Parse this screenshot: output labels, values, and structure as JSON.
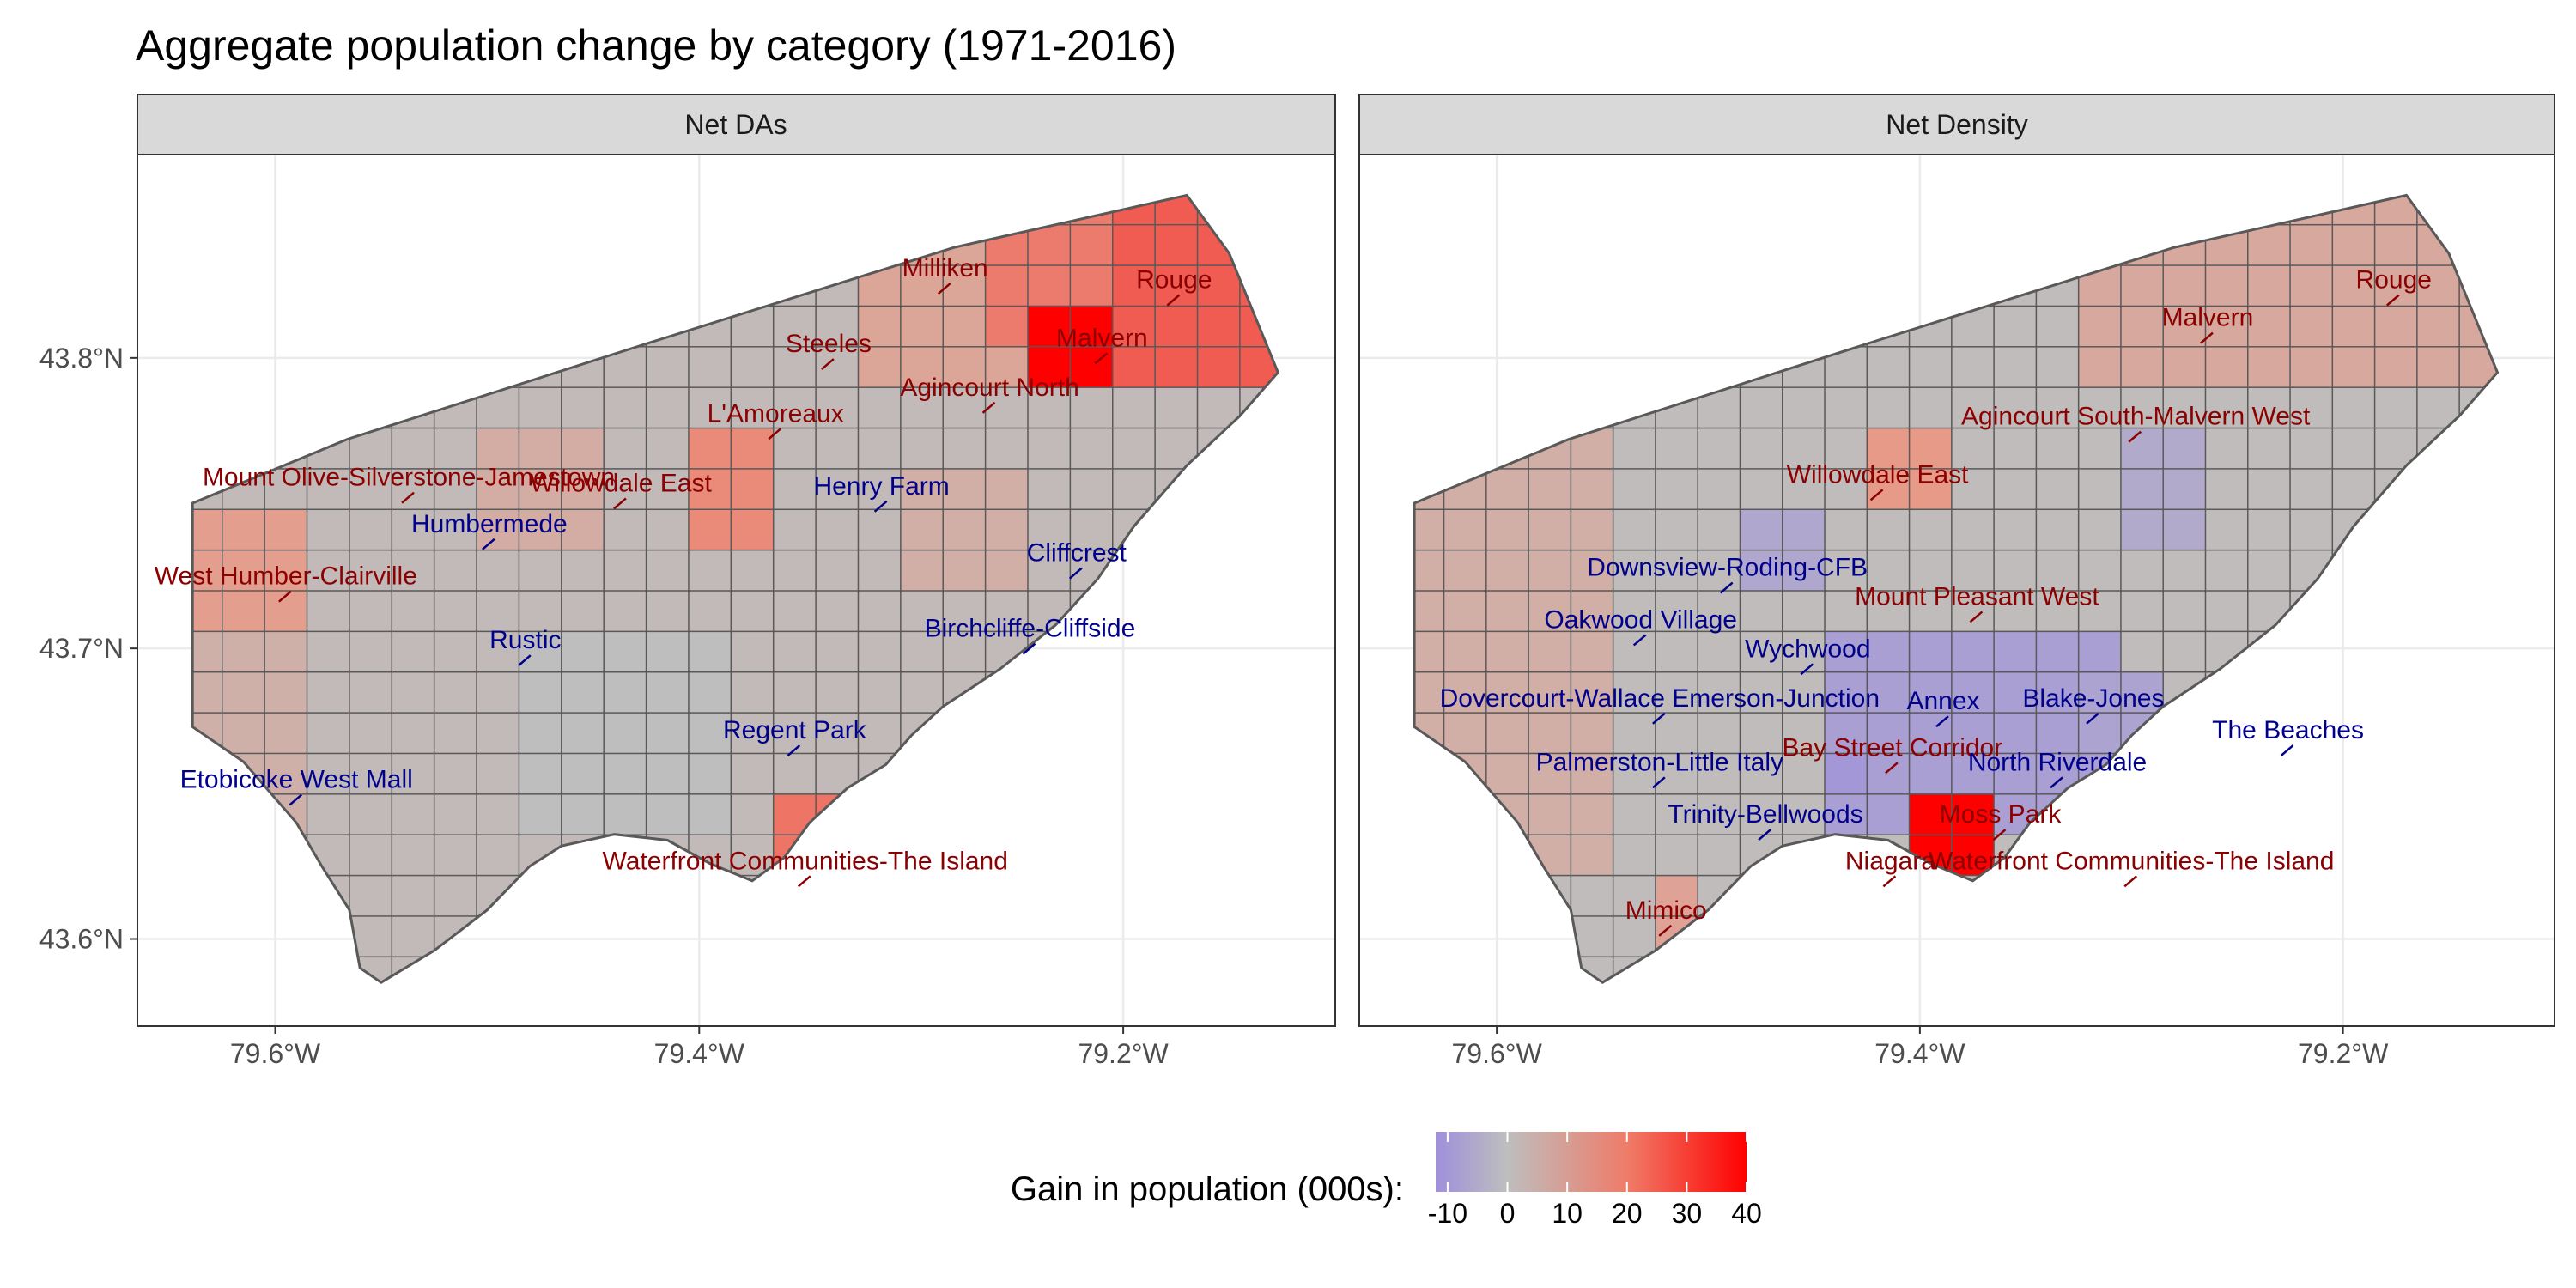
{
  "title": "Aggregate population change by category (1971-2016)",
  "panels": [
    {
      "strip": "Net DAs",
      "labels": [
        {
          "text": "Milliken",
          "lon": -79.284,
          "lat": 43.828,
          "side": "gain"
        },
        {
          "text": "Rouge",
          "lon": -79.176,
          "lat": 43.824,
          "side": "gain"
        },
        {
          "text": "Steeles",
          "lon": -79.339,
          "lat": 43.802,
          "side": "gain"
        },
        {
          "text": "Malvern",
          "lon": -79.21,
          "lat": 43.804,
          "side": "gain"
        },
        {
          "text": "Agincourt North",
          "lon": -79.263,
          "lat": 43.787,
          "side": "gain"
        },
        {
          "text": "L'Amoreaux",
          "lon": -79.364,
          "lat": 43.778,
          "side": "gain"
        },
        {
          "text": "Henry Farm",
          "lon": -79.314,
          "lat": 43.753,
          "side": "loss"
        },
        {
          "text": "Mount Olive-Silverstone-Jamestown",
          "lon": -79.537,
          "lat": 43.756,
          "side": "gain"
        },
        {
          "text": "Willowdale East",
          "lon": -79.437,
          "lat": 43.754,
          "side": "gain"
        },
        {
          "text": "Humbermede",
          "lon": -79.499,
          "lat": 43.74,
          "side": "loss"
        },
        {
          "text": "Cliffcrest",
          "lon": -79.222,
          "lat": 43.73,
          "side": "loss"
        },
        {
          "text": "West Humber-Clairville",
          "lon": -79.595,
          "lat": 43.722,
          "side": "gain"
        },
        {
          "text": "Rustic",
          "lon": -79.482,
          "lat": 43.7,
          "side": "loss"
        },
        {
          "text": "Birchcliffe-Cliffside",
          "lon": -79.244,
          "lat": 43.704,
          "side": "loss"
        },
        {
          "text": "Regent Park",
          "lon": -79.355,
          "lat": 43.669,
          "side": "loss"
        },
        {
          "text": "Etobicoke West Mall",
          "lon": -79.59,
          "lat": 43.652,
          "side": "loss"
        },
        {
          "text": "Waterfront Communities-The Island",
          "lon": -79.35,
          "lat": 43.624,
          "side": "gain"
        }
      ]
    },
    {
      "strip": "Net Density",
      "labels": [
        {
          "text": "Rouge",
          "lon": -79.176,
          "lat": 43.824,
          "side": "gain"
        },
        {
          "text": "Malvern",
          "lon": -79.264,
          "lat": 43.811,
          "side": "gain"
        },
        {
          "text": "Agincourt South-Malvern West",
          "lon": -79.298,
          "lat": 43.777,
          "side": "gain"
        },
        {
          "text": "Willowdale East",
          "lon": -79.42,
          "lat": 43.757,
          "side": "gain"
        },
        {
          "text": "Downsview-Roding-CFB",
          "lon": -79.491,
          "lat": 43.725,
          "side": "loss"
        },
        {
          "text": "Mount Pleasant West",
          "lon": -79.373,
          "lat": 43.715,
          "side": "gain"
        },
        {
          "text": "Oakwood Village",
          "lon": -79.532,
          "lat": 43.707,
          "side": "loss"
        },
        {
          "text": "Wychwood",
          "lon": -79.453,
          "lat": 43.697,
          "side": "loss"
        },
        {
          "text": "Blake-Jones",
          "lon": -79.318,
          "lat": 43.68,
          "side": "loss"
        },
        {
          "text": "Dovercourt-Wallace Emerson-Junction",
          "lon": -79.523,
          "lat": 43.68,
          "side": "loss"
        },
        {
          "text": "Annex",
          "lon": -79.389,
          "lat": 43.679,
          "side": "loss"
        },
        {
          "text": "The Beaches",
          "lon": -79.226,
          "lat": 43.669,
          "side": "loss"
        },
        {
          "text": "Bay Street Corridor",
          "lon": -79.413,
          "lat": 43.663,
          "side": "gain"
        },
        {
          "text": "Palmerston-Little Italy",
          "lon": -79.523,
          "lat": 43.658,
          "side": "loss"
        },
        {
          "text": "North Riverdale",
          "lon": -79.335,
          "lat": 43.658,
          "side": "loss"
        },
        {
          "text": "Trinity-Bellwoods",
          "lon": -79.473,
          "lat": 43.64,
          "side": "loss"
        },
        {
          "text": "Moss Park",
          "lon": -79.362,
          "lat": 43.64,
          "side": "gain"
        },
        {
          "text": "Niagara",
          "lon": -79.414,
          "lat": 43.624,
          "side": "gain"
        },
        {
          "text": "Waterfront Communities-The Island",
          "lon": -79.3,
          "lat": 43.624,
          "side": "gain"
        },
        {
          "text": "Mimico",
          "lon": -79.52,
          "lat": 43.607,
          "side": "gain"
        }
      ]
    }
  ],
  "axes": {
    "x_ticks": [
      "79.6°W",
      "79.4°W",
      "79.2°W"
    ],
    "x_tick_values": [
      -79.6,
      -79.4,
      -79.2
    ],
    "y_ticks": [
      "43.6°N",
      "43.7°N",
      "43.8°N"
    ],
    "y_tick_values": [
      43.6,
      43.7,
      43.8
    ],
    "lon_range": [
      -79.665,
      -79.1
    ],
    "lat_range": [
      43.57,
      43.87
    ]
  },
  "legend": {
    "title": "Gain in population (000s):",
    "ticks": [
      "-10",
      "0",
      "10",
      "20",
      "30",
      "40"
    ],
    "tick_values": [
      -10,
      0,
      10,
      20,
      30,
      40
    ],
    "range": [
      -12,
      40
    ],
    "placement": "bottom"
  },
  "colors": {
    "loss_low": "#9f8fdc",
    "neutral": "#bebebe",
    "gain_high": "#ff0000",
    "gain_label": "#8b0000",
    "loss_label": "#00008b",
    "outline": "#595959",
    "strip_fill": "#d9d9d9",
    "grid": "#ebebeb"
  }
}
